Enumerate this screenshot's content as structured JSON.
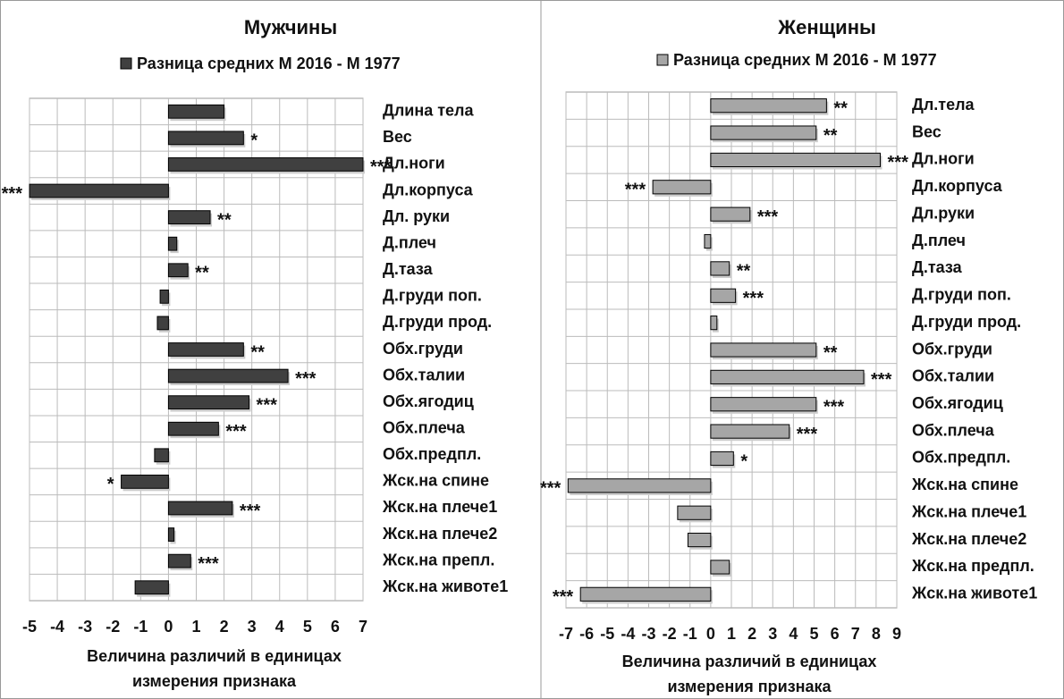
{
  "chart_data": [
    {
      "type": "barh",
      "title": "Мужчины",
      "xlabel": "Величина различий в единицах измерения признака",
      "categories": [
        "Длина тела",
        "Вес",
        "Дл.ноги",
        "Дл.корпуса",
        "Дл. руки",
        "Д.плеч",
        "Д.таза",
        "Д.груди поп.",
        "Д.груди прод.",
        "Обх.груди",
        "Обх.талии",
        "Обх.ягодиц",
        "Обх.плеча",
        "Обх.предпл.",
        "Жск.на спине",
        "Жск.на плече1",
        "Жск.на плече2",
        "Жск.на препл.",
        "Жск.на животе1"
      ],
      "series": [
        {
          "name": "Разница средних М 2016 - М 1977",
          "color": "#404040",
          "values": [
            2.0,
            2.7,
            7.0,
            -5.0,
            1.5,
            0.3,
            0.7,
            -0.3,
            -0.4,
            2.7,
            4.3,
            2.9,
            1.8,
            -0.5,
            -1.7,
            2.3,
            0.2,
            0.8,
            -1.2
          ],
          "annotations": [
            null,
            "*",
            "***",
            "***",
            "**",
            null,
            "**",
            null,
            null,
            "**",
            "***",
            "***",
            "***",
            null,
            "*",
            "***",
            null,
            "***",
            null
          ]
        }
      ],
      "xlim": [
        -5,
        7
      ],
      "xticks": [
        -5,
        -4,
        -3,
        -2,
        -1,
        0,
        1,
        2,
        3,
        4,
        5,
        6,
        7
      ],
      "grid": true
    },
    {
      "type": "barh",
      "title": "Женщины",
      "xlabel": "Величина различий в единицах измерения признака",
      "categories": [
        "Дл.тела",
        "Вес",
        "Дл.ноги",
        "Дл.корпуса",
        "Дл.руки",
        "Д.плеч",
        "Д.таза",
        "Д.груди поп.",
        "Д.груди прод.",
        "Обх.груди",
        "Обх.талии",
        "Обх.ягодиц",
        "Обх.плеча",
        "Обх.предпл.",
        "Жск.на спине",
        "Жск.на плече1",
        "Жск.на плече2",
        "Жск.на предпл.",
        "Жск.на животе1"
      ],
      "series": [
        {
          "name": "Разница средних М 2016 - М 1977",
          "color": "#a6a6a6",
          "values": [
            5.6,
            5.1,
            8.2,
            -2.8,
            1.9,
            -0.3,
            0.9,
            1.2,
            0.3,
            5.1,
            7.4,
            5.1,
            3.8,
            1.1,
            -6.9,
            -1.6,
            -1.1,
            0.9,
            -6.3
          ],
          "annotations": [
            "**",
            "**",
            "***",
            "***",
            "***",
            null,
            "**",
            "***",
            null,
            "**",
            "***",
            "***",
            "***",
            "*",
            "***",
            null,
            null,
            null,
            "***"
          ]
        }
      ],
      "xlim": [
        -7,
        9
      ],
      "xticks": [
        -7,
        -6,
        -5,
        -4,
        -3,
        -2,
        -1,
        0,
        1,
        2,
        3,
        4,
        5,
        6,
        7,
        8,
        9
      ],
      "grid": true
    }
  ]
}
